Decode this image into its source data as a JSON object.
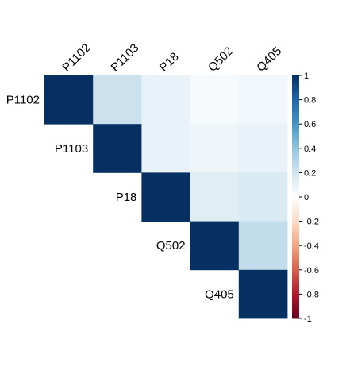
{
  "chart_data": {
    "type": "heatmap",
    "subtype": "correlation-upper-triangle",
    "variables": [
      "P1102",
      "P1103",
      "P18",
      "Q502",
      "Q405"
    ],
    "values": [
      [
        1.0,
        0.22,
        0.1,
        0.04,
        0.06
      ],
      [
        0.22,
        1.0,
        0.1,
        0.08,
        0.1
      ],
      [
        0.1,
        0.1,
        1.0,
        0.14,
        0.16
      ],
      [
        0.04,
        0.08,
        0.14,
        1.0,
        0.25
      ],
      [
        0.06,
        0.1,
        0.16,
        0.25,
        1.0
      ]
    ],
    "color_scale": {
      "min": -1,
      "max": 1,
      "ticks": [
        1,
        0.8,
        0.6,
        0.4,
        0.2,
        0,
        -0.2,
        -0.4,
        -0.6,
        -0.8,
        -1
      ],
      "tick_labels": [
        "1",
        "0.8",
        "0.6",
        "0.4",
        "0.2",
        "0",
        "-0.2",
        "-0.4",
        "-0.6",
        "-0.8",
        "-1"
      ],
      "colors": {
        "negative": "#67001F",
        "neutral": "#FFFFFF",
        "positive": "#053061"
      }
    },
    "legend": "right",
    "grid": false
  }
}
